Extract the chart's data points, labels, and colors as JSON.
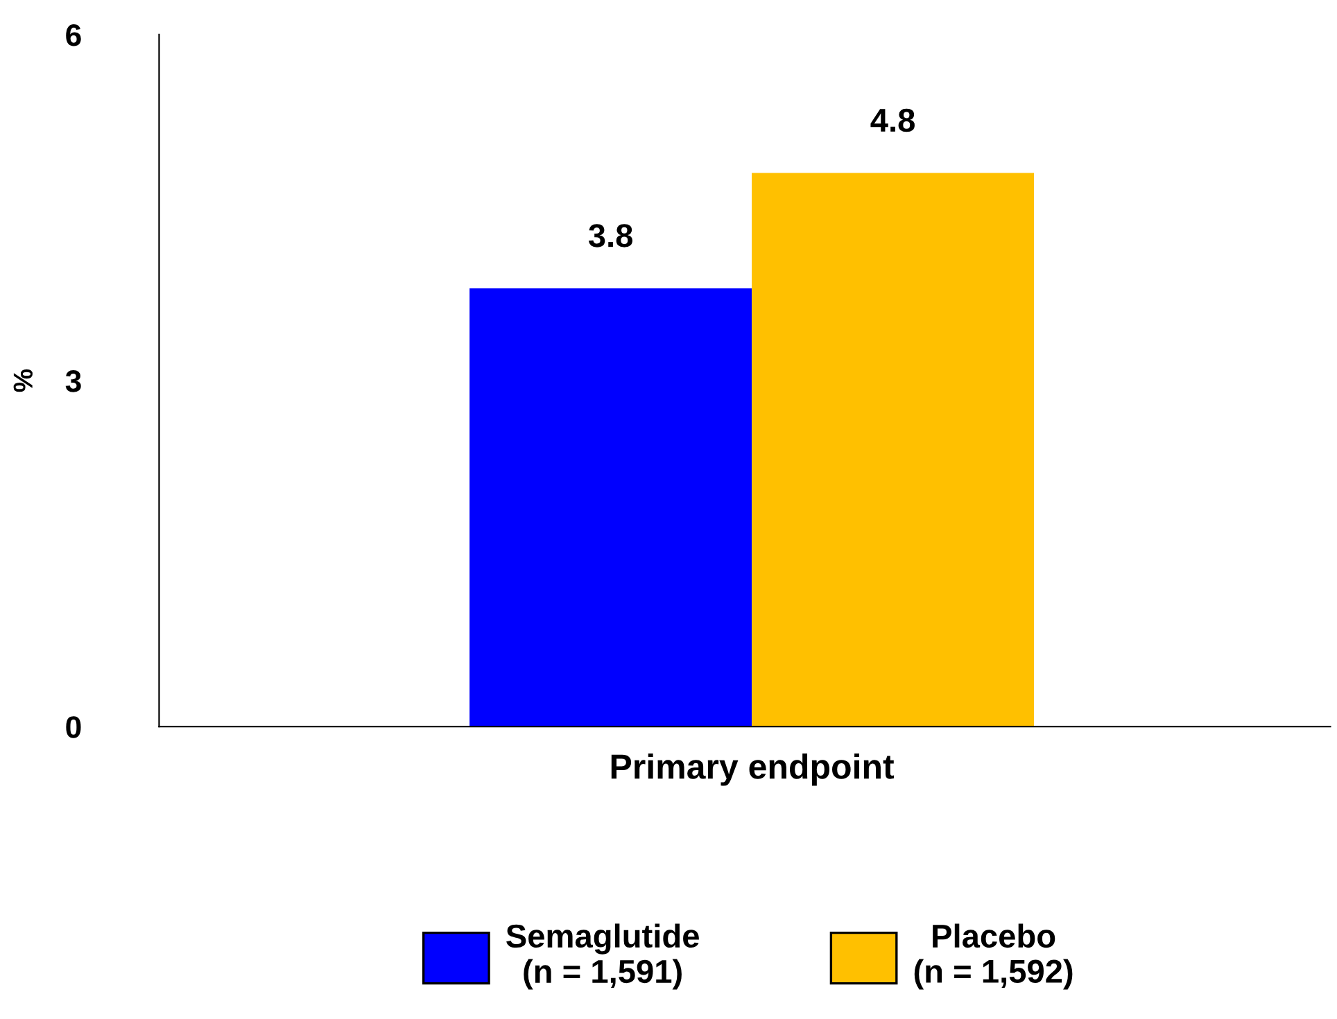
{
  "chart_data": {
    "type": "bar",
    "ylabel": "%",
    "categories": [
      "Primary endpoint"
    ],
    "series": [
      {
        "name": "Semaglutide\n(n = 1,591)",
        "color": "#0000ff",
        "values": [
          3.8
        ]
      },
      {
        "name": "Placebo\n(n = 1,592)",
        "color": "#ffc000",
        "values": [
          4.8
        ]
      }
    ],
    "ylim": [
      0,
      6
    ],
    "yticks": [
      0,
      3,
      6
    ],
    "grid": false,
    "legend": "bottom",
    "data_labels": true
  }
}
